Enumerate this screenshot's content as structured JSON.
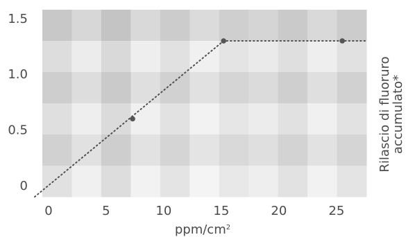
{
  "chart_data": {
    "type": "line",
    "title": "",
    "xlabel": "ppm/cm",
    "xlabel_superscript": "2",
    "ylabel_lines": [
      "Rilascio di fluoruro",
      "accumulato*"
    ],
    "xlim": [
      -1.2,
      27.6
    ],
    "ylim": [
      -0.1,
      1.58
    ],
    "x_ticks": [
      0,
      5,
      10,
      15,
      20,
      25
    ],
    "x_tick_labels": [
      "0",
      "5",
      "10",
      "15",
      "20",
      "25"
    ],
    "y_ticks": [
      0,
      0.5,
      1.0,
      1.5
    ],
    "y_tick_labels": [
      "0",
      "0.5",
      "1.0",
      "1.5"
    ],
    "series": [
      {
        "x": [
          -1.2,
          15.2,
          27.6
        ],
        "y": [
          -0.1,
          1.3,
          1.3
        ],
        "style": "dotted",
        "color": "#505050"
      }
    ],
    "markers": [
      {
        "x": 7.3,
        "y": 0.6
      },
      {
        "x": 15.2,
        "y": 1.3
      },
      {
        "x": 25.5,
        "y": 1.3
      }
    ],
    "grid": true,
    "background": "checkered gray"
  }
}
